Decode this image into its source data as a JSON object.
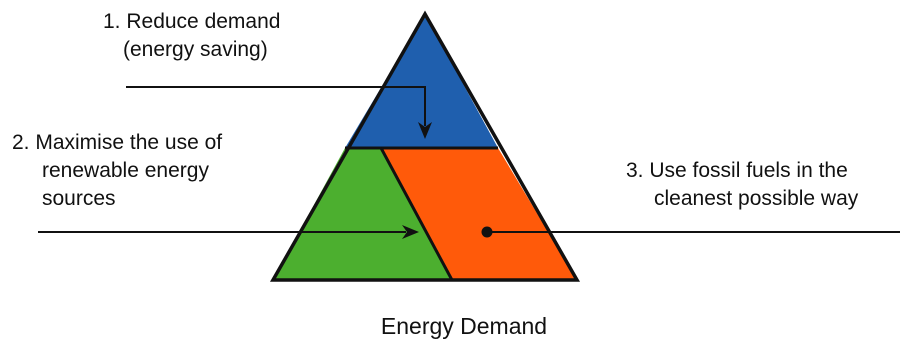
{
  "labels": {
    "reduce_demand": [
      "1. Reduce demand",
      "(energy saving)"
    ],
    "renewables": [
      "2. Maximise the use of",
      "renewable energy",
      "sources"
    ],
    "fossil": [
      "3. Use fossil fuels in the",
      "cleanest possible way"
    ]
  },
  "caption": "Energy Demand",
  "colors": {
    "top_segment": "#1f5fae",
    "left_segment": "#4caf2f",
    "right_segment": "#ff5a0a",
    "outline": "#111111"
  }
}
